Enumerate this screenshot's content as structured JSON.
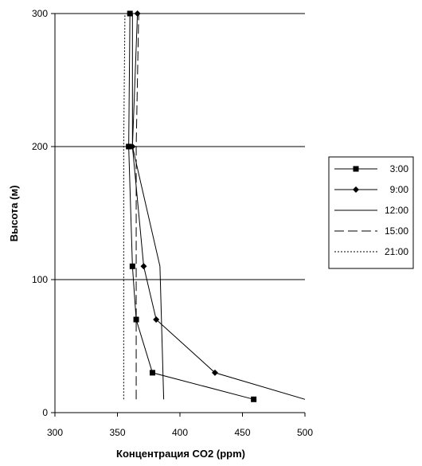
{
  "chart_data": {
    "type": "line",
    "title": "",
    "xlabel": "Концентрация CO2 (ppm)",
    "ylabel": "Высота (м)",
    "xlim": [
      300,
      500
    ],
    "ylim": [
      0,
      300
    ],
    "x_ticks": [
      "300",
      "350",
      "400",
      "450",
      "500"
    ],
    "y_ticks": [
      "0",
      "100",
      "200",
      "300"
    ],
    "grid": "horizontal major gridlines",
    "legend_position": "right",
    "series": [
      {
        "name": "3:00",
        "marker": "square",
        "dash": "solid",
        "points": [
          [
            459,
            10
          ],
          [
            378,
            30
          ],
          [
            365,
            70
          ],
          [
            362,
            110
          ],
          [
            359,
            200
          ],
          [
            360,
            300
          ]
        ]
      },
      {
        "name": "9:00",
        "marker": "diamond",
        "dash": "solid",
        "points": [
          [
            500,
            10
          ],
          [
            428,
            30
          ],
          [
            381,
            70
          ],
          [
            371,
            110
          ],
          [
            362,
            200
          ],
          [
            366,
            300
          ]
        ]
      },
      {
        "name": "12:00",
        "marker": "none",
        "dash": "solid",
        "points": [
          [
            387,
            10
          ],
          [
            384,
            110
          ],
          [
            362,
            200
          ],
          [
            362,
            300
          ]
        ]
      },
      {
        "name": "15:00",
        "marker": "none",
        "dash": "long-dash",
        "points": [
          [
            365,
            10
          ],
          [
            365,
            200
          ],
          [
            367,
            300
          ]
        ]
      },
      {
        "name": "21:00",
        "marker": "none",
        "dash": "dotted",
        "points": [
          [
            355,
            10
          ],
          [
            355,
            200
          ],
          [
            356,
            300
          ]
        ]
      }
    ]
  }
}
